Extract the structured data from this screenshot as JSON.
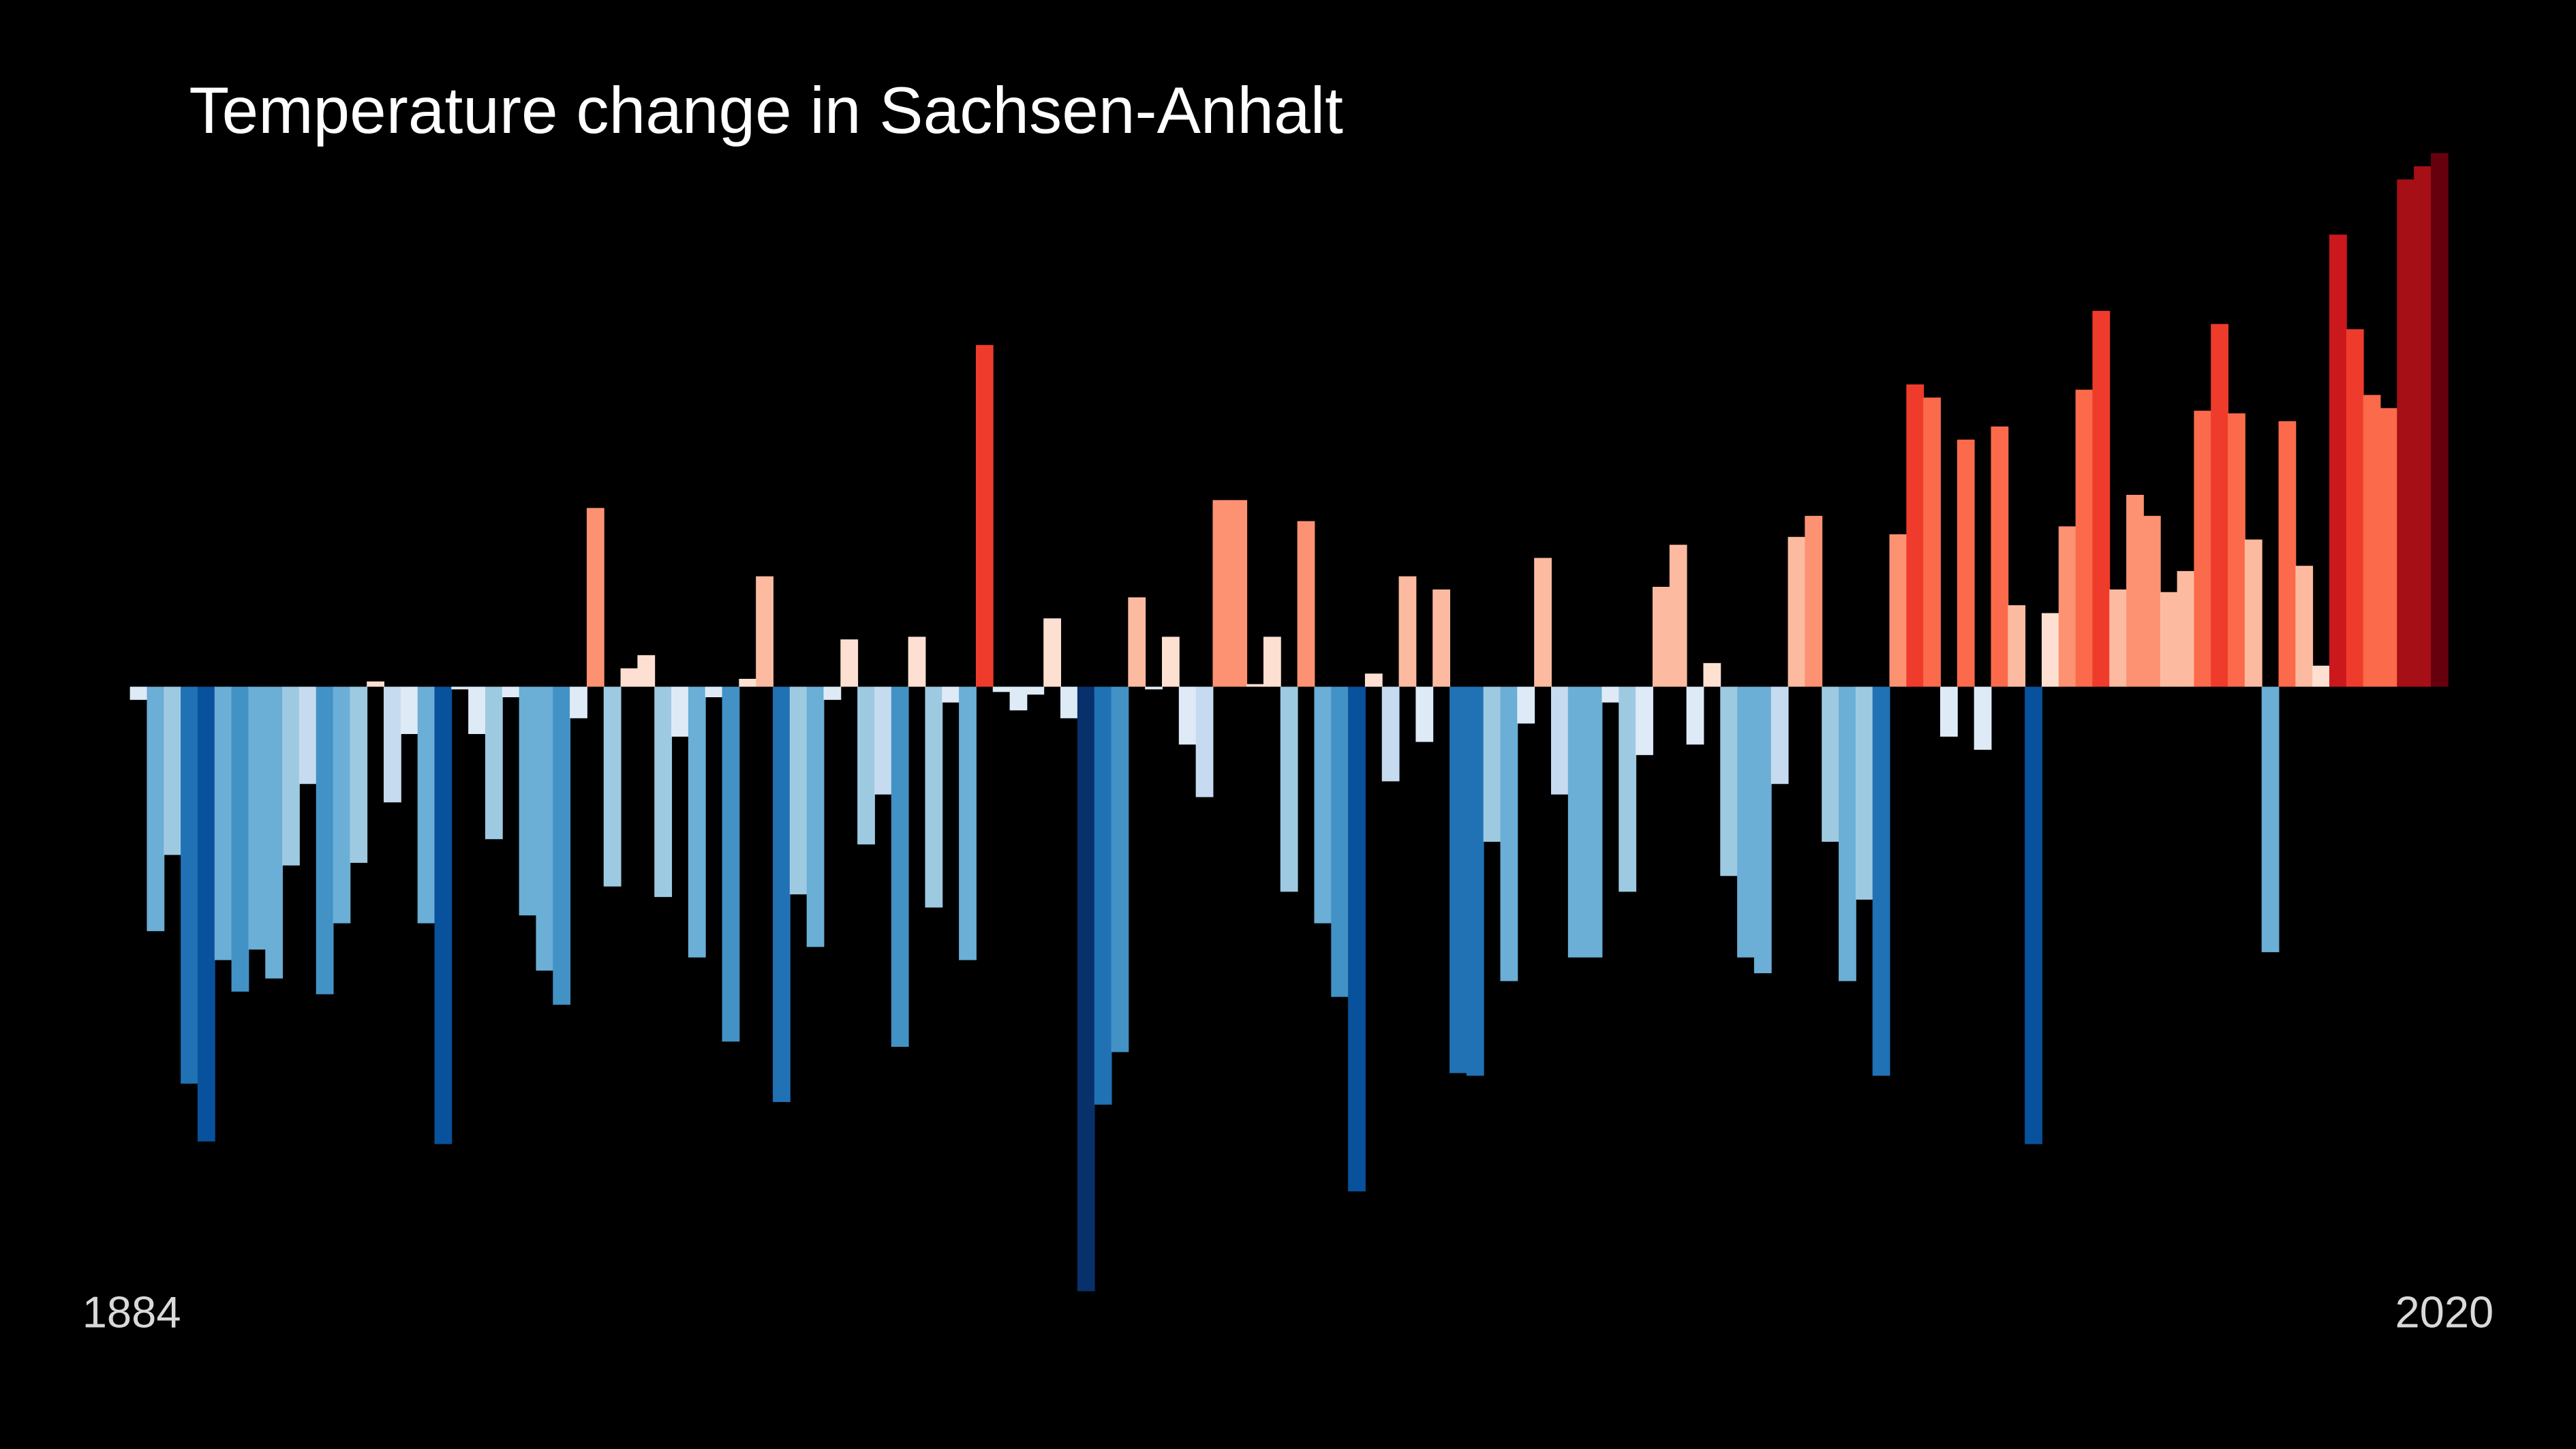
{
  "chart_data": {
    "type": "bar",
    "title": "Temperature change in Sachsen-Anhalt",
    "categories": [
      "1884",
      null,
      null,
      null,
      null,
      null,
      null,
      null,
      null,
      null,
      null,
      null,
      null,
      null,
      null,
      null,
      null,
      null,
      null,
      null,
      null,
      null,
      null,
      null,
      null,
      null,
      null,
      null,
      null,
      null,
      null,
      null,
      null,
      null,
      null,
      null,
      null,
      null,
      null,
      null,
      null,
      null,
      null,
      null,
      null,
      null,
      null,
      null,
      null,
      null,
      null,
      null,
      null,
      null,
      null,
      null,
      null,
      null,
      null,
      null,
      null,
      null,
      null,
      null,
      null,
      null,
      null,
      null,
      null,
      null,
      null,
      null,
      null,
      null,
      null,
      null,
      null,
      null,
      null,
      null,
      null,
      null,
      null,
      null,
      null,
      null,
      null,
      null,
      null,
      null,
      null,
      null,
      null,
      null,
      null,
      null,
      null,
      null,
      null,
      null,
      null,
      null,
      null,
      null,
      null,
      null,
      null,
      null,
      null,
      null,
      null,
      null,
      null,
      null,
      null,
      null,
      null,
      null,
      null,
      null,
      null,
      null,
      null,
      null,
      null,
      null,
      null,
      null,
      null,
      null,
      null,
      null,
      null,
      null,
      null,
      null,
      "2020"
    ],
    "values": [
      -0.05,
      -0.93,
      -0.64,
      -1.51,
      -1.73,
      -1.04,
      -1.16,
      -1.0,
      -1.11,
      -0.68,
      -0.37,
      -1.17,
      -0.9,
      -0.67,
      0.02,
      -0.44,
      -0.18,
      -0.9,
      -1.74,
      -0.01,
      -0.18,
      -0.58,
      -0.04,
      -0.87,
      -1.08,
      -1.21,
      -0.12,
      0.68,
      -0.76,
      0.07,
      0.12,
      -0.8,
      -0.19,
      -1.03,
      -0.04,
      -1.35,
      0.03,
      0.42,
      -1.58,
      -0.79,
      -0.99,
      -0.05,
      0.18,
      -0.6,
      -0.41,
      -1.37,
      0.19,
      -0.84,
      -0.06,
      -1.04,
      1.3,
      -0.02,
      -0.09,
      -0.03,
      0.26,
      -0.12,
      -2.3,
      -1.59,
      -1.39,
      0.34,
      -0.01,
      0.19,
      -0.22,
      -0.42,
      0.71,
      0.71,
      0.01,
      0.19,
      -0.78,
      0.63,
      -0.9,
      -1.18,
      -1.92,
      0.05,
      -0.36,
      0.42,
      -0.21,
      0.37,
      -1.47,
      -1.48,
      -0.59,
      -1.12,
      -0.14,
      0.49,
      -0.41,
      -1.03,
      -1.03,
      -0.06,
      -0.78,
      -0.26,
      0.38,
      0.54,
      -0.22,
      0.09,
      -0.72,
      -1.03,
      -1.09,
      -0.37,
      0.57,
      0.65,
      -0.59,
      -1.12,
      -0.81,
      -1.48,
      0.58,
      1.15,
      1.1,
      -0.19,
      0.94,
      -0.24,
      0.99,
      0.31,
      -1.74,
      0.28,
      0.61,
      1.13,
      1.43,
      0.37,
      0.73,
      0.65,
      0.36,
      0.44,
      1.05,
      1.38,
      1.04,
      0.56,
      -1.01,
      1.01,
      0.46,
      0.08,
      1.72,
      1.36,
      1.11,
      1.06,
      1.93,
      1.98,
      2.03
    ],
    "ylim": [
      -2.3,
      2.1
    ],
    "colormap": [
      "#08306b",
      "#08519c",
      "#2171b5",
      "#4292c6",
      "#6baed6",
      "#9ecae1",
      "#c6dbef",
      "#deebf7",
      "#fee0d2",
      "#fcbba1",
      "#fc9272",
      "#fb6a4a",
      "#ef3b2c",
      "#cb181d",
      "#a50f15",
      "#67000d"
    ],
    "background": "#000000"
  }
}
